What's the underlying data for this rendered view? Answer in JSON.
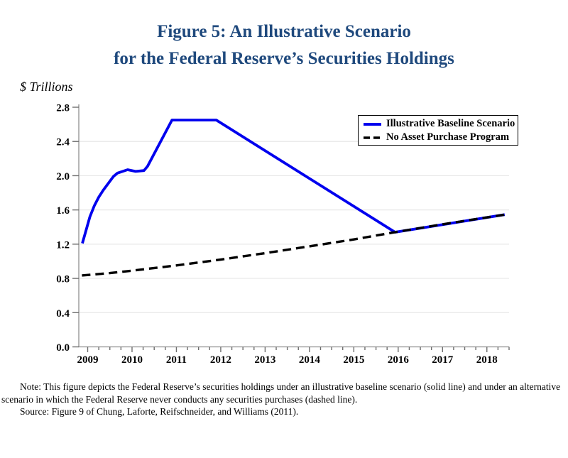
{
  "figure": {
    "title_line1": "Figure 5: An Illustrative Scenario",
    "title_line2": "for the Federal Reserve’s Securities Holdings",
    "unit_label": "$ Trillions"
  },
  "notes": {
    "note": "Note:  This figure depicts the Federal Reserve’s securities holdings under an illustrative baseline scenario (solid line) and under an alternative scenario in which the Federal Reserve never conducts any securities purchases (dashed line).",
    "source": "Source:  Figure 9 of Chung, Laforte, Reifschneider, and Williams (2011)."
  },
  "colors": {
    "title": "#1F497D",
    "baseline_line": "#0000EE",
    "no_purchase_line": "#000000",
    "axis": "#8F8F8F",
    "tick": "#6E6E6E",
    "gridline": "#E8E8E8"
  },
  "chart_data": {
    "type": "line",
    "title": "Figure 5: An Illustrative Scenario for the Federal Reserve’s Securities Holdings",
    "xlabel": "",
    "ylabel": "$ Trillions",
    "xlim": [
      2008.8,
      2018.5
    ],
    "ylim": [
      0,
      2.8
    ],
    "y_ticks": [
      0.0,
      0.4,
      0.8,
      1.2,
      1.6,
      2.0,
      2.4,
      2.8
    ],
    "x_ticks": [
      2009,
      2010,
      2011,
      2012,
      2013,
      2014,
      2015,
      2016,
      2017,
      2018
    ],
    "x_minor_tick_step": 0.25,
    "grid": "horizontal-light",
    "legend_position": "top-right",
    "series": [
      {
        "name": "Illustrative Baseline Scenario",
        "style": "solid",
        "color": "#0000EE",
        "points": [
          [
            2008.88,
            1.21
          ],
          [
            2009.05,
            1.52
          ],
          [
            2009.15,
            1.65
          ],
          [
            2009.25,
            1.75
          ],
          [
            2009.35,
            1.83
          ],
          [
            2009.45,
            1.9
          ],
          [
            2009.58,
            1.99
          ],
          [
            2009.67,
            2.03
          ],
          [
            2009.9,
            2.07
          ],
          [
            2010.08,
            2.05
          ],
          [
            2010.27,
            2.06
          ],
          [
            2010.35,
            2.11
          ],
          [
            2010.9,
            2.65
          ],
          [
            2011.9,
            2.65
          ],
          [
            2015.93,
            1.34
          ],
          [
            2018.4,
            1.545
          ]
        ]
      },
      {
        "name": "No Asset Purchase Program",
        "style": "dashed",
        "color": "#000000",
        "points": [
          [
            2008.87,
            0.835
          ],
          [
            2009.5,
            0.862
          ],
          [
            2010.0,
            0.89
          ],
          [
            2011.0,
            0.952
          ],
          [
            2012.0,
            1.02
          ],
          [
            2013.0,
            1.095
          ],
          [
            2014.0,
            1.175
          ],
          [
            2015.0,
            1.255
          ],
          [
            2015.93,
            1.34
          ],
          [
            2017.0,
            1.432
          ],
          [
            2018.4,
            1.545
          ]
        ]
      }
    ]
  }
}
